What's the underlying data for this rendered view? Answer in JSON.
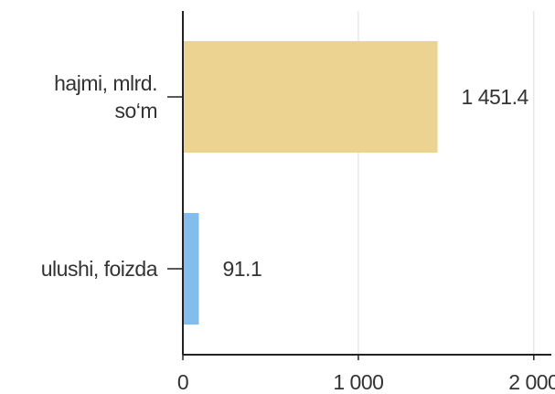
{
  "chart_data": {
    "type": "bar",
    "orientation": "horizontal",
    "categories": [
      "hajmi, mlrd. so‘m",
      "ulushi, foizda"
    ],
    "series": [
      {
        "colors": [
          "#edd391",
          "#82bdee"
        ],
        "values": [
          1451.4,
          91.1
        ],
        "value_labels": [
          "1 451.4",
          "91.1"
        ]
      }
    ],
    "xlim": [
      0,
      2100
    ],
    "xticks": [
      0,
      {
        "value": 1000,
        "label": "1 000"
      },
      {
        "value": 2000,
        "label": "2 000"
      }
    ],
    "grid": true
  }
}
